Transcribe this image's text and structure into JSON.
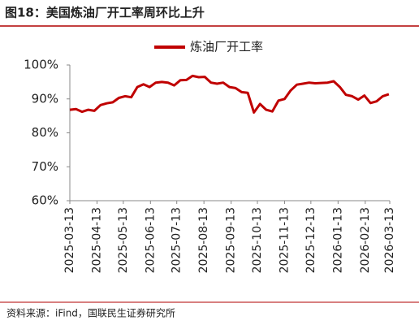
{
  "chart_data": {
    "type": "line",
    "title": "图18：美国炼油厂开工率周环比上升",
    "source": "资料来源：iFind，国联民生证券研究所",
    "x": [
      "2025-03-13",
      "2025-03-20",
      "2025-03-27",
      "2025-04-03",
      "2025-04-10",
      "2025-04-17",
      "2025-04-24",
      "2025-05-01",
      "2025-05-08",
      "2025-05-15",
      "2025-05-22",
      "2025-05-29",
      "2025-06-05",
      "2025-06-12",
      "2025-06-19",
      "2025-06-26",
      "2025-07-03",
      "2025-07-10",
      "2025-07-17",
      "2025-07-24",
      "2025-07-31",
      "2025-08-07",
      "2025-08-14",
      "2025-08-21",
      "2025-08-28",
      "2025-09-04",
      "2025-09-11",
      "2025-09-18",
      "2025-09-25",
      "2025-10-02",
      "2025-10-09",
      "2025-10-16",
      "2025-10-23",
      "2025-10-30",
      "2025-11-06",
      "2025-11-13",
      "2025-11-20",
      "2025-11-27",
      "2025-12-04",
      "2025-12-11",
      "2025-12-18",
      "2025-12-25",
      "2026-01-01",
      "2026-01-08",
      "2026-01-15",
      "2026-01-22",
      "2026-01-29",
      "2026-02-05",
      "2026-02-12",
      "2026-02-19",
      "2026-02-26",
      "2026-03-05",
      "2026-03-12"
    ],
    "series": [
      {
        "name": "炼油厂开工率",
        "color": "#c00000",
        "values": [
          86.8,
          87,
          86.2,
          86.8,
          86.5,
          88.2,
          88.7,
          89,
          90.3,
          90.8,
          90.5,
          93.5,
          94.3,
          93.5,
          94.8,
          95,
          94.8,
          94,
          95.5,
          95.6,
          96.8,
          96.4,
          96.5,
          94.8,
          94.5,
          94.8,
          93.5,
          93.2,
          92,
          91.8,
          86,
          88.5,
          86.8,
          86.3,
          89.5,
          90,
          92.5,
          94.2,
          94.5,
          94.8,
          94.6,
          94.7,
          94.8,
          95.2,
          93.5,
          91.2,
          90.8,
          89.8,
          91,
          88.8,
          89.3,
          90.8,
          91.4
        ]
      }
    ],
    "xlim": [
      "2025-03-13",
      "2026-03-13"
    ],
    "xticks": [
      "2025-03-13",
      "2025-04-13",
      "2025-05-13",
      "2025-06-13",
      "2025-07-13",
      "2025-08-13",
      "2025-09-13",
      "2025-10-13",
      "2025-11-13",
      "2025-12-13",
      "2026-01-13",
      "2026-02-13",
      "2026-03-13"
    ],
    "ylim": [
      60,
      100
    ],
    "yticks": [
      {
        "value": 60,
        "label": "60%"
      },
      {
        "value": 70,
        "label": "70%"
      },
      {
        "value": 80,
        "label": "80%"
      },
      {
        "value": 90,
        "label": "90%"
      },
      {
        "value": 100,
        "label": "100%"
      }
    ],
    "grid": false,
    "legend": "top"
  }
}
